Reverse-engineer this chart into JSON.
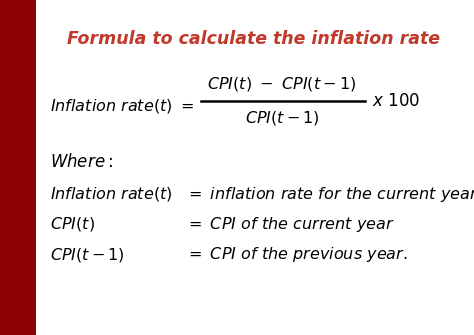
{
  "title": "Formula to calculate the inflation rate",
  "title_color": "#C0392B",
  "bg_color": "#FFFFFF",
  "left_bar_color": "#8B0000",
  "figsize": [
    4.74,
    3.35
  ],
  "dpi": 100
}
